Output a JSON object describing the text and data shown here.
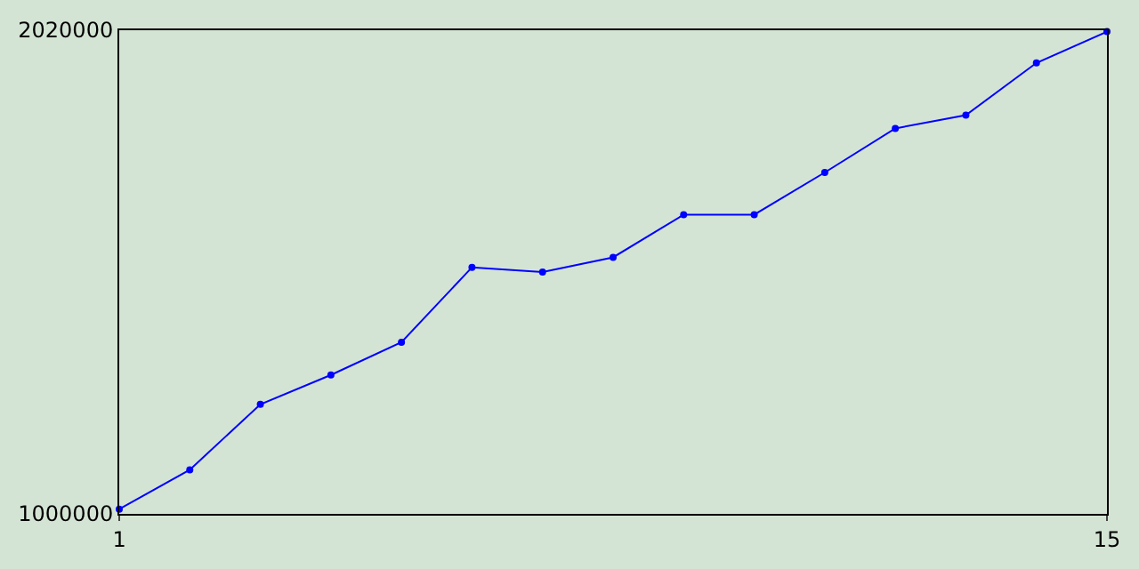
{
  "chart_data": {
    "type": "line",
    "x": [
      1,
      2,
      3,
      4,
      5,
      6,
      7,
      8,
      9,
      10,
      11,
      12,
      13,
      14,
      15
    ],
    "series": [
      {
        "color": "#0000ff",
        "values": [
          1010000,
          1093000,
          1231000,
          1293000,
          1362000,
          1520000,
          1510000,
          1541000,
          1631000,
          1631000,
          1720000,
          1813000,
          1841000,
          1951000,
          2017000
        ]
      }
    ],
    "xlim": [
      1,
      15
    ],
    "xticks": [
      1,
      15
    ],
    "ylim": [
      1000000,
      2020000
    ],
    "yticks": [
      1000000,
      2020000
    ],
    "legend": false,
    "marker": "circle",
    "line_style": "solid"
  }
}
